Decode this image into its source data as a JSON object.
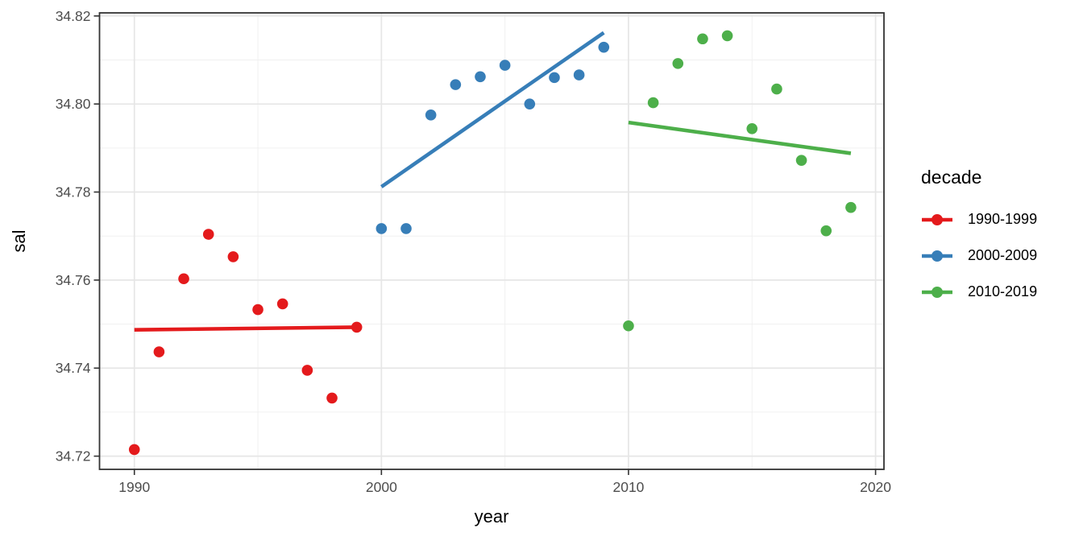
{
  "chart_data": {
    "type": "scatter",
    "title": "",
    "xlabel": "year",
    "ylabel": "sal",
    "xlim": [
      1988.59,
      2020.34
    ],
    "ylim": [
      34.717,
      34.8207
    ],
    "grid": true,
    "x_tick_values": [
      1990,
      2000,
      2010,
      2020
    ],
    "x_tick_labels": [
      "1990",
      "2000",
      "2010",
      "2020"
    ],
    "y_tick_values": [
      34.72,
      34.74,
      34.76,
      34.78,
      34.8,
      34.82
    ],
    "y_tick_labels": [
      "34.72",
      "34.74",
      "34.76",
      "34.78",
      "34.80",
      "34.82"
    ],
    "x_minor": [
      1995,
      2005,
      2015
    ],
    "y_minor": [
      34.73,
      34.75,
      34.77,
      34.79,
      34.81
    ],
    "legend": {
      "title": "decade",
      "position": "right",
      "entries": [
        {
          "label": "1990-1999",
          "color": "#E41A1C"
        },
        {
          "label": "2000-2009",
          "color": "#377EB8"
        },
        {
          "label": "2010-2019",
          "color": "#4DAF4A"
        }
      ]
    },
    "series": [
      {
        "name": "1990-1999",
        "color": "#E41A1C",
        "x": [
          1990,
          1991,
          1992,
          1993,
          1994,
          1995,
          1996,
          1997,
          1998,
          1999
        ],
        "y": [
          34.7215,
          34.7437,
          34.7603,
          34.7704,
          34.7653,
          34.7533,
          34.7546,
          34.7395,
          34.7332,
          34.7493
        ],
        "trend": {
          "x1": 1990,
          "y1": 34.7487,
          "x2": 1999,
          "y2": 34.7493
        }
      },
      {
        "name": "2000-2009",
        "color": "#377EB8",
        "x": [
          2000,
          2001,
          2002,
          2003,
          2004,
          2005,
          2006,
          2007,
          2008,
          2009
        ],
        "y": [
          34.7717,
          34.7717,
          34.7975,
          34.8044,
          34.8062,
          34.8088,
          34.8,
          34.806,
          34.8066,
          34.8129
        ],
        "trend": {
          "x1": 2000,
          "y1": 34.7812,
          "x2": 2009,
          "y2": 34.8162
        }
      },
      {
        "name": "2010-2019",
        "color": "#4DAF4A",
        "x": [
          2010,
          2011,
          2012,
          2013,
          2014,
          2015,
          2016,
          2017,
          2018,
          2019
        ],
        "y": [
          34.7496,
          34.8003,
          34.8092,
          34.8148,
          34.8155,
          34.7944,
          34.8034,
          34.7872,
          34.7712,
          34.7765
        ],
        "trend": {
          "x1": 2010,
          "y1": 34.7958,
          "x2": 2019,
          "y2": 34.7888
        }
      }
    ]
  }
}
